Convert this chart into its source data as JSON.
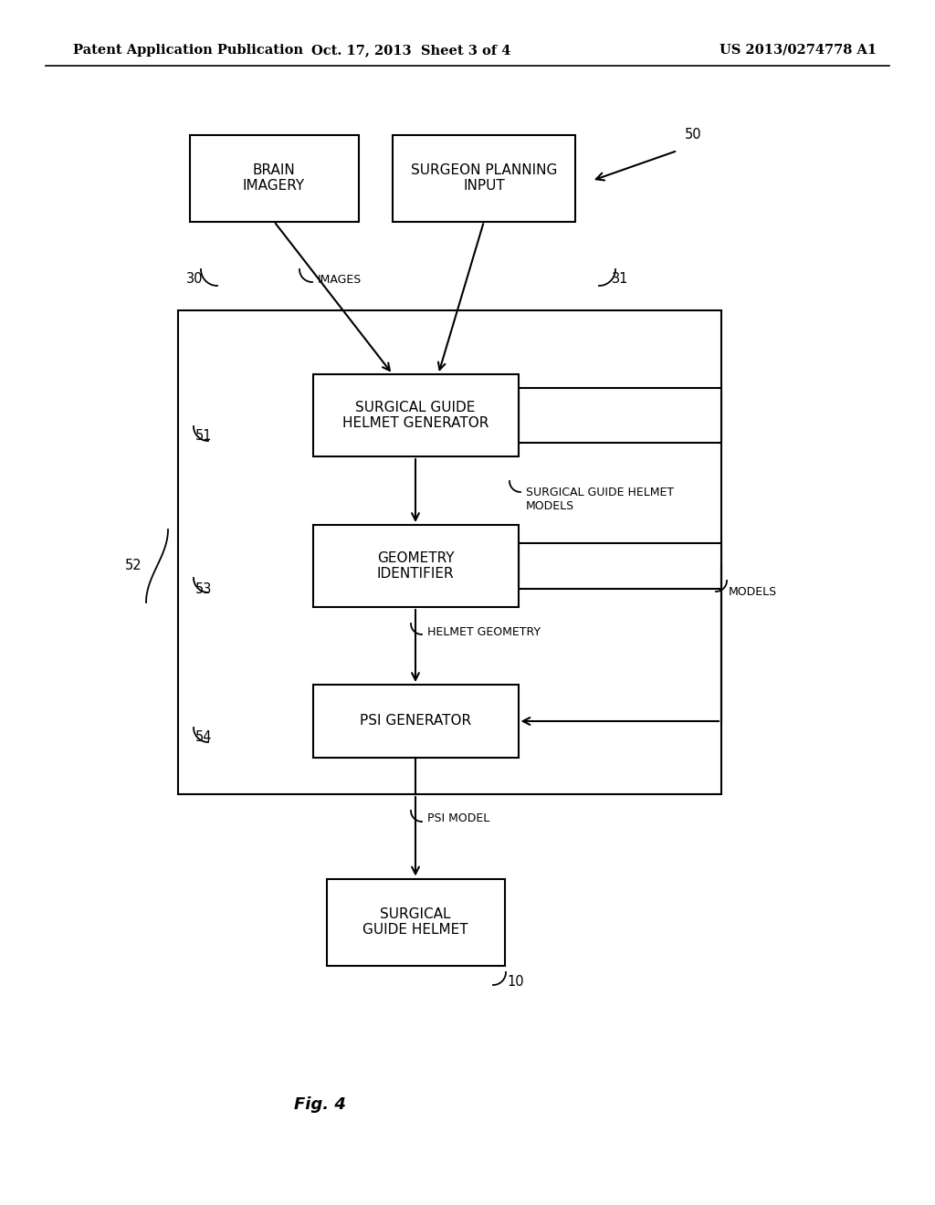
{
  "bg_color": "#ffffff",
  "header_left": "Patent Application Publication",
  "header_mid": "Oct. 17, 2013  Sheet 3 of 4",
  "header_right": "US 2013/0274778 A1",
  "caption": "Fig. 4"
}
